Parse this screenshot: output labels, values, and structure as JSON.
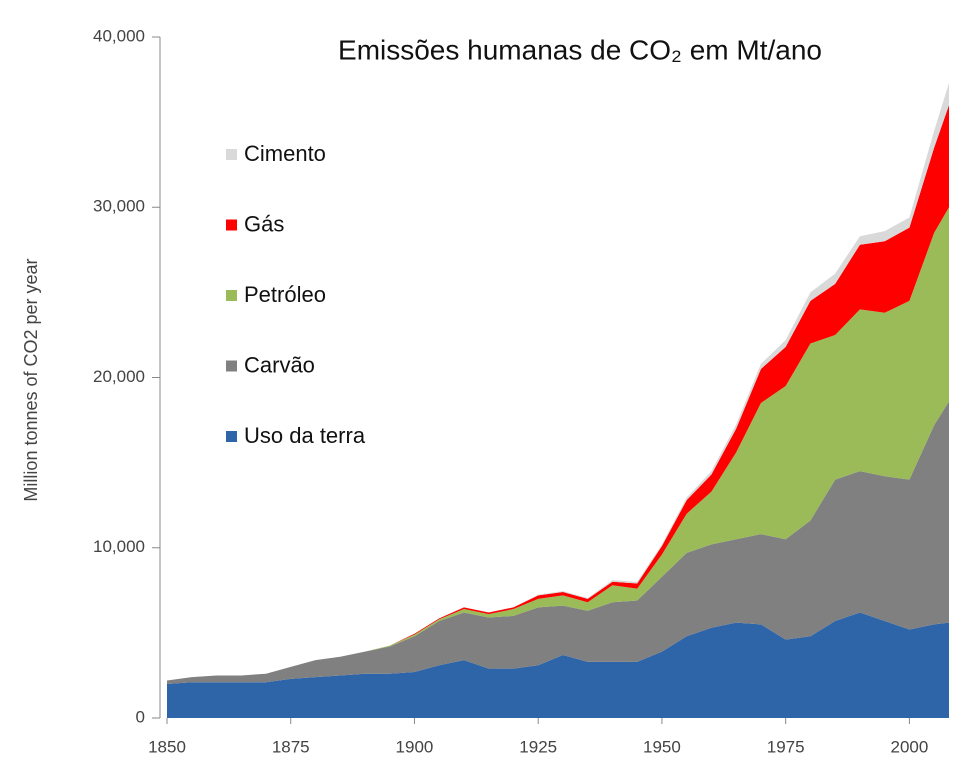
{
  "chart_data": {
    "type": "stacked_area",
    "title": "Emissões humanas de CO₂ em Mt/ano",
    "y_label": "Million tonnes of CO2 per year",
    "x": [
      1850,
      1855,
      1860,
      1865,
      1870,
      1875,
      1880,
      1885,
      1890,
      1895,
      1900,
      1905,
      1910,
      1915,
      1920,
      1925,
      1930,
      1935,
      1940,
      1945,
      1950,
      1955,
      1960,
      1965,
      1970,
      1975,
      1980,
      1985,
      1990,
      1995,
      2000,
      2005,
      2008
    ],
    "series": [
      {
        "name": "Uso da terra",
        "color": "#2e64a8",
        "values": [
          2000,
          2100,
          2100,
          2100,
          2100,
          2300,
          2400,
          2500,
          2600,
          2600,
          2700,
          3100,
          3400,
          2900,
          2900,
          3100,
          3700,
          3300,
          3300,
          3300,
          3900,
          4800,
          5300,
          5600,
          5500,
          4600,
          4800,
          5700,
          6200,
          5700,
          5200,
          5500,
          5600
        ]
      },
      {
        "name": "Carvão",
        "color": "#808080",
        "values": [
          200,
          300,
          400,
          400,
          500,
          700,
          1000,
          1100,
          1300,
          1600,
          2100,
          2600,
          2800,
          3000,
          3100,
          3400,
          2900,
          3000,
          3500,
          3600,
          4400,
          4900,
          4900,
          4900,
          5300,
          5900,
          6800,
          8300,
          8300,
          8500,
          8800,
          11700,
          13000
        ]
      },
      {
        "name": "Petróleo",
        "color": "#9bbb59",
        "values": [
          0,
          0,
          0,
          0,
          0,
          0,
          0,
          0,
          0,
          50,
          100,
          100,
          200,
          200,
          400,
          500,
          600,
          500,
          1000,
          700,
          1300,
          2300,
          3100,
          5100,
          7700,
          9000,
          10400,
          8500,
          9500,
          9600,
          10500,
          11300,
          11400
        ]
      },
      {
        "name": "Gás",
        "color": "#ff0000",
        "values": [
          0,
          0,
          0,
          0,
          0,
          0,
          0,
          0,
          0,
          0,
          50,
          50,
          100,
          100,
          100,
          200,
          200,
          200,
          200,
          300,
          500,
          800,
          1000,
          1400,
          2000,
          2300,
          2500,
          3000,
          3800,
          4200,
          4300,
          5000,
          6000
        ]
      },
      {
        "name": "Cimento",
        "color": "#d9d9d9",
        "values": [
          0,
          0,
          0,
          0,
          0,
          0,
          0,
          0,
          0,
          0,
          0,
          0,
          0,
          0,
          0,
          50,
          50,
          50,
          100,
          100,
          100,
          150,
          200,
          250,
          300,
          400,
          500,
          600,
          500,
          600,
          600,
          1000,
          1300
        ]
      }
    ],
    "xlim": [
      1850,
      2008
    ],
    "ylim": [
      0,
      40000
    ],
    "xticks": [
      1850,
      1875,
      1900,
      1925,
      1950,
      1975,
      2000
    ],
    "yticks": [
      0,
      {
        "value": 10000,
        "label": "10,000"
      },
      {
        "value": 20000,
        "label": "20,000"
      },
      {
        "value": 30000,
        "label": "30,000"
      },
      {
        "value": 40000,
        "label": "40,000"
      }
    ],
    "grid": false,
    "legend": "upper left"
  }
}
